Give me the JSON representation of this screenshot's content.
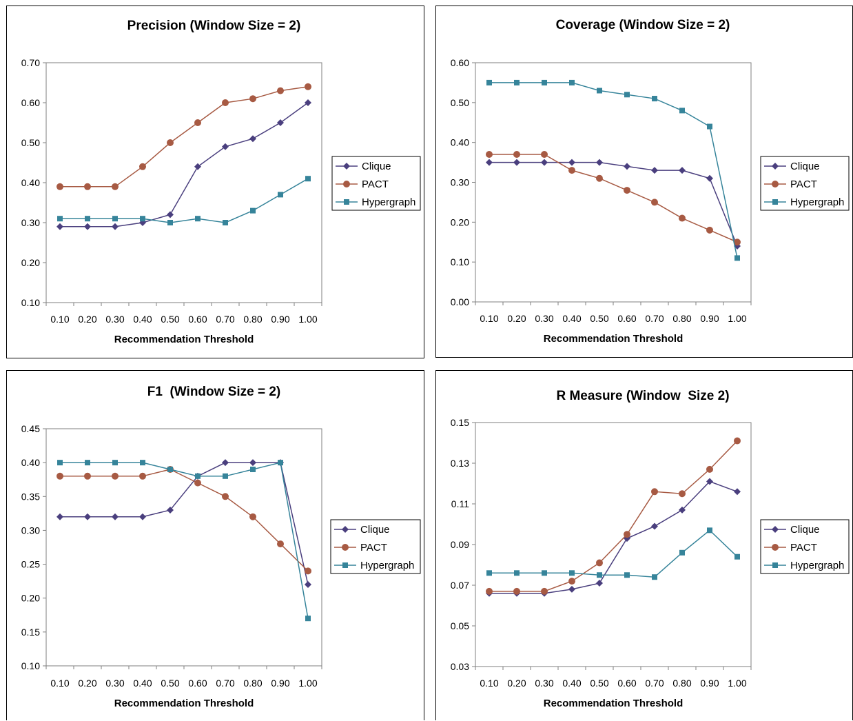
{
  "colors": {
    "clique": "#4A3F7E",
    "pact": "#A75A43",
    "hypergraph": "#36849A",
    "plot_background": "#FFFFFF",
    "axis": "#7F7F7F"
  },
  "chart_data": [
    {
      "type": "line",
      "title": "Precision (Window Size = 2)",
      "xlabel": "Recommendation Threshold",
      "ylabel": "",
      "categories": [
        "0.10",
        "0.20",
        "0.30",
        "0.40",
        "0.50",
        "0.60",
        "0.70",
        "0.80",
        "0.90",
        "1.00"
      ],
      "yticks": [
        "0.10",
        "0.20",
        "0.30",
        "0.40",
        "0.50",
        "0.60",
        "0.70"
      ],
      "ylim": [
        0.1,
        0.7
      ],
      "grid": false,
      "legend_position": "right",
      "series": [
        {
          "name": "Clique",
          "marker": "diamond",
          "values": [
            0.29,
            0.29,
            0.29,
            0.3,
            0.32,
            0.44,
            0.49,
            0.51,
            0.55,
            0.6
          ]
        },
        {
          "name": "PACT",
          "marker": "circle",
          "values": [
            0.39,
            0.39,
            0.39,
            0.44,
            0.5,
            0.55,
            0.6,
            0.61,
            0.63,
            0.64
          ]
        },
        {
          "name": "Hypergraph",
          "marker": "square",
          "values": [
            0.31,
            0.31,
            0.31,
            0.31,
            0.3,
            0.31,
            0.3,
            0.33,
            0.37,
            0.41
          ]
        }
      ]
    },
    {
      "type": "line",
      "title": "Coverage (Window Size = 2)",
      "xlabel": "Recommendation Threshold",
      "ylabel": "",
      "categories": [
        "0.10",
        "0.20",
        "0.30",
        "0.40",
        "0.50",
        "0.60",
        "0.70",
        "0.80",
        "0.90",
        "1.00"
      ],
      "yticks": [
        "0.00",
        "0.10",
        "0.20",
        "0.30",
        "0.40",
        "0.50",
        "0.60"
      ],
      "ylim": [
        0.0,
        0.6
      ],
      "grid": false,
      "legend_position": "right",
      "series": [
        {
          "name": "Clique",
          "marker": "diamond",
          "values": [
            0.35,
            0.35,
            0.35,
            0.35,
            0.35,
            0.34,
            0.33,
            0.33,
            0.31,
            0.14
          ]
        },
        {
          "name": "PACT",
          "marker": "circle",
          "values": [
            0.37,
            0.37,
            0.37,
            0.33,
            0.31,
            0.28,
            0.25,
            0.21,
            0.18,
            0.15
          ]
        },
        {
          "name": "Hypergraph",
          "marker": "square",
          "values": [
            0.55,
            0.55,
            0.55,
            0.55,
            0.53,
            0.52,
            0.51,
            0.48,
            0.44,
            0.11
          ]
        }
      ]
    },
    {
      "type": "line",
      "title": "F1  (Window Size = 2)",
      "xlabel": "Recommendation Threshold",
      "ylabel": "",
      "categories": [
        "0.10",
        "0.20",
        "0.30",
        "0.40",
        "0.50",
        "0.60",
        "0.70",
        "0.80",
        "0.90",
        "1.00"
      ],
      "yticks": [
        "0.10",
        "0.15",
        "0.20",
        "0.25",
        "0.30",
        "0.35",
        "0.40",
        "0.45"
      ],
      "ylim": [
        0.1,
        0.45
      ],
      "grid": false,
      "legend_position": "right",
      "series": [
        {
          "name": "Clique",
          "marker": "diamond",
          "values": [
            0.32,
            0.32,
            0.32,
            0.32,
            0.33,
            0.38,
            0.4,
            0.4,
            0.4,
            0.22
          ]
        },
        {
          "name": "PACT",
          "marker": "circle",
          "values": [
            0.38,
            0.38,
            0.38,
            0.38,
            0.39,
            0.37,
            0.35,
            0.32,
            0.28,
            0.24
          ]
        },
        {
          "name": "Hypergraph",
          "marker": "square",
          "values": [
            0.4,
            0.4,
            0.4,
            0.4,
            0.39,
            0.38,
            0.38,
            0.39,
            0.4,
            0.17
          ]
        }
      ]
    },
    {
      "type": "line",
      "title": "R Measure (Window  Size 2)",
      "xlabel": "Recommendation Threshold",
      "ylabel": "",
      "categories": [
        "0.10",
        "0.20",
        "0.30",
        "0.40",
        "0.50",
        "0.60",
        "0.70",
        "0.80",
        "0.90",
        "1.00"
      ],
      "yticks": [
        "0.03",
        "0.05",
        "0.07",
        "0.09",
        "0.11",
        "0.13",
        "0.15"
      ],
      "ylim": [
        0.03,
        0.15
      ],
      "grid": false,
      "legend_position": "right",
      "series": [
        {
          "name": "Clique",
          "marker": "diamond",
          "values": [
            0.066,
            0.066,
            0.066,
            0.068,
            0.071,
            0.093,
            0.099,
            0.107,
            0.121,
            0.116
          ]
        },
        {
          "name": "PACT",
          "marker": "circle",
          "values": [
            0.067,
            0.067,
            0.067,
            0.072,
            0.081,
            0.095,
            0.116,
            0.115,
            0.127,
            0.141
          ]
        },
        {
          "name": "Hypergraph",
          "marker": "square",
          "values": [
            0.076,
            0.076,
            0.076,
            0.076,
            0.075,
            0.075,
            0.074,
            0.086,
            0.097,
            0.084
          ]
        }
      ]
    }
  ]
}
